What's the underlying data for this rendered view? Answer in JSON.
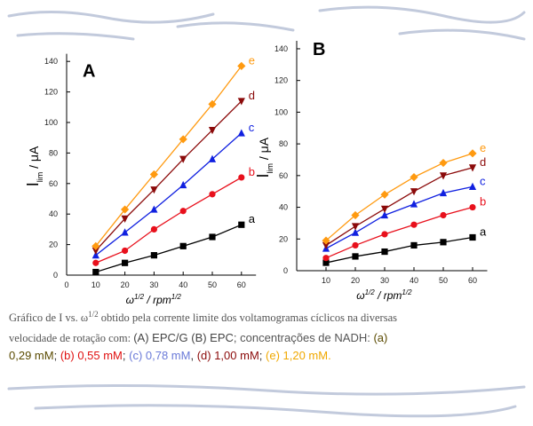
{
  "chart_data": [
    {
      "type": "line",
      "panel": "A",
      "xlabel": {
        "base": "ω",
        "exp": "1/2",
        "unit": " / rpm",
        "unit_exp": "1/2"
      },
      "ylabel": {
        "base": "I",
        "sub": "lim",
        "rest": " / μA"
      },
      "xlim": [
        0,
        65
      ],
      "ylim": [
        0,
        145
      ],
      "xticks": [
        0,
        10,
        20,
        30,
        40,
        50,
        60
      ],
      "yticks": [
        0,
        20,
        40,
        60,
        80,
        100,
        120,
        140
      ],
      "x": [
        10,
        20,
        30,
        40,
        50,
        60
      ],
      "series": [
        {
          "name": "a",
          "color": "#000000",
          "marker": "square",
          "values": [
            2,
            8,
            13,
            19,
            25,
            33
          ]
        },
        {
          "name": "b",
          "color": "#e8101c",
          "marker": "circle",
          "values": [
            8,
            16,
            30,
            42,
            53,
            64
          ]
        },
        {
          "name": "c",
          "color": "#1020e0",
          "marker": "triangle-up",
          "values": [
            13,
            28,
            43,
            59,
            76,
            93
          ]
        },
        {
          "name": "d",
          "color": "#8b0a0a",
          "marker": "triangle-down",
          "values": [
            16,
            37,
            56,
            76,
            95,
            114
          ]
        },
        {
          "name": "e",
          "color": "#ff9a10",
          "marker": "diamond",
          "values": [
            19,
            43,
            66,
            89,
            112,
            137
          ]
        }
      ]
    },
    {
      "type": "line",
      "panel": "B",
      "xlabel": {
        "base": "ω",
        "exp": "1/2",
        "unit": " / rpm",
        "unit_exp": "1/2"
      },
      "ylabel": {
        "base": "I",
        "sub": "lim",
        "rest": " / μA"
      },
      "xlim": [
        0,
        65
      ],
      "ylim": [
        0,
        145
      ],
      "xticks": [
        10,
        20,
        30,
        40,
        50,
        60
      ],
      "yticks": [
        0,
        20,
        40,
        60,
        80,
        100,
        120,
        140
      ],
      "x": [
        10,
        20,
        30,
        40,
        50,
        60
      ],
      "series": [
        {
          "name": "a",
          "color": "#000000",
          "marker": "square",
          "values": [
            5,
            9,
            12,
            16,
            18,
            21
          ]
        },
        {
          "name": "b",
          "color": "#e8101c",
          "marker": "circle",
          "values": [
            8,
            16,
            23,
            29,
            35,
            40
          ]
        },
        {
          "name": "c",
          "color": "#1020e0",
          "marker": "triangle-up",
          "values": [
            14,
            24,
            35,
            42,
            49,
            53
          ]
        },
        {
          "name": "d",
          "color": "#8b0a0a",
          "marker": "triangle-down",
          "values": [
            16,
            28,
            39,
            50,
            60,
            65
          ]
        },
        {
          "name": "e",
          "color": "#ff9a10",
          "marker": "diamond",
          "values": [
            19,
            35,
            48,
            59,
            68,
            74
          ]
        }
      ]
    }
  ],
  "caption": [
    [
      {
        "text": "Gráfico de I vs. ω",
        "color": "#555555",
        "font": "serif"
      },
      {
        "text": "1/2",
        "color": "#555555",
        "font": "serif",
        "sup": true
      },
      {
        "text": " obtido pela corrente limite dos voltamogramas cíclicos na diversas",
        "color": "#555555",
        "font": "serif"
      }
    ],
    [
      {
        "text": "velocidade de rotação com: ",
        "color": "#555555",
        "font": "serif"
      },
      {
        "text": "(A) EPC/G",
        "color": "#444444",
        "font": "sans"
      },
      {
        "text": "  (B) EPC",
        "color": "#444444",
        "font": "sans"
      },
      {
        "text": "; concentrações de NADH:  ",
        "color": "#555555",
        "font": "sans"
      },
      {
        "text": "(a)",
        "color": "#5a4a00",
        "font": "sans"
      }
    ],
    [
      {
        "text": "0,29 mM",
        "color": "#5a4a00",
        "font": "sans"
      },
      {
        "text": "; ",
        "color": "#333333",
        "font": "sans"
      },
      {
        "text": "(b) 0,55 mM",
        "color": "#e01010",
        "font": "sans"
      },
      {
        "text": "; ",
        "color": "#333333",
        "font": "sans"
      },
      {
        "text": "(c) 0,78 mM",
        "color": "#6a7ad8",
        "font": "sans"
      },
      {
        "text": ", ",
        "color": "#333333",
        "font": "sans"
      },
      {
        "text": "(d) 1,00 mM",
        "color": "#8b0a0a",
        "font": "sans"
      },
      {
        "text": "; ",
        "color": "#333333",
        "font": "sans"
      },
      {
        "text": "(e) 1,20 mM.",
        "color": "#f0a800",
        "font": "sans"
      }
    ]
  ]
}
